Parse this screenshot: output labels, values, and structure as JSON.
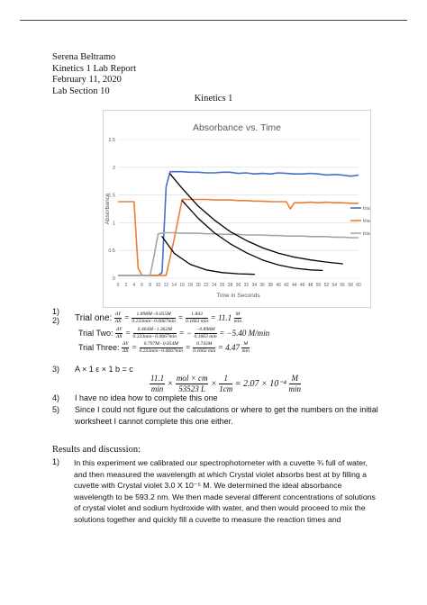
{
  "header": {
    "name": "Serena Beltramo",
    "report": "Kinetics 1 Lab Report",
    "date": "February 11, 2020",
    "section": "Lab Section 10"
  },
  "doc_title": "Kinetics 1",
  "chart_data": {
    "type": "line",
    "title": "Absorbance vs. Time",
    "xlabel": "Time in Seconds",
    "ylabel": "Absorbance",
    "xlim": [
      0,
      60
    ],
    "ylim": [
      0,
      2.5
    ],
    "x_ticks": [
      "0",
      "2",
      "4",
      "6",
      "8",
      "10",
      "12",
      "14",
      "16",
      "18",
      "20",
      "22",
      "24",
      "26",
      "28",
      "30",
      "32",
      "34",
      "36",
      "38",
      "40",
      "42",
      "44",
      "46",
      "48",
      "50",
      "52",
      "54",
      "56",
      "58",
      "60"
    ],
    "y_ticks": [
      "0",
      "0.5",
      "1",
      "1.5",
      "2",
      "2.5"
    ],
    "grid": true,
    "legend_position": "right",
    "series": [
      {
        "name": "trial one",
        "color": "#4472c4",
        "x": [
          0,
          2,
          4,
          6,
          8,
          10,
          11,
          12,
          13,
          14,
          16,
          18,
          20,
          22,
          24,
          26,
          28,
          30,
          32,
          34,
          36,
          38,
          40,
          42,
          44,
          46,
          48,
          50,
          52,
          54,
          56,
          58,
          60
        ],
        "y": [
          0.05,
          0.05,
          0.05,
          0.05,
          0.05,
          0.05,
          0.1,
          1.65,
          1.92,
          1.92,
          1.92,
          1.91,
          1.91,
          1.9,
          1.9,
          1.91,
          1.91,
          1.89,
          1.9,
          1.88,
          1.89,
          1.88,
          1.9,
          1.89,
          1.88,
          1.88,
          1.89,
          1.88,
          1.86,
          1.87,
          1.86,
          1.84,
          1.86
        ]
      },
      {
        "name": "trial 2",
        "color": "#ed7d31",
        "x": [
          0,
          2,
          4,
          5,
          6,
          7,
          8,
          10,
          12,
          14,
          16,
          18,
          20,
          22,
          24,
          26,
          28,
          30,
          32,
          34,
          36,
          38,
          40,
          42,
          43,
          44,
          46,
          48,
          50,
          52,
          54,
          56,
          58,
          60
        ],
        "y": [
          1.38,
          1.38,
          1.38,
          0.18,
          0.05,
          0.05,
          0.05,
          0.05,
          0.05,
          0.7,
          1.42,
          1.42,
          1.42,
          1.42,
          1.41,
          1.41,
          1.41,
          1.4,
          1.4,
          1.39,
          1.39,
          1.38,
          1.38,
          1.38,
          1.25,
          1.36,
          1.36,
          1.37,
          1.36,
          1.37,
          1.36,
          1.36,
          1.35,
          1.35
        ]
      },
      {
        "name": "trial 3",
        "color": "#a5a5a5",
        "x": [
          0,
          2,
          4,
          6,
          7,
          8,
          9,
          10,
          12,
          14,
          16,
          18,
          20,
          22,
          24,
          26,
          28,
          30,
          32,
          34,
          36,
          38,
          40,
          42,
          44,
          46,
          48,
          50,
          52,
          54,
          56,
          58,
          60
        ],
        "y": [
          0.05,
          0.05,
          0.05,
          0.05,
          0.05,
          0.05,
          0.4,
          0.8,
          0.82,
          0.82,
          0.81,
          0.81,
          0.81,
          0.8,
          0.8,
          0.79,
          0.79,
          0.79,
          0.78,
          0.78,
          0.78,
          0.77,
          0.77,
          0.76,
          0.76,
          0.76,
          0.75,
          0.75,
          0.75,
          0.74,
          0.74,
          0.73,
          0.73
        ]
      }
    ],
    "drawn_curves": [
      {
        "color": "#000000",
        "x": [
          13,
          16,
          20,
          24,
          28,
          32,
          36,
          40,
          44,
          48,
          52,
          56
        ],
        "y": [
          1.88,
          1.62,
          1.3,
          1.05,
          0.84,
          0.68,
          0.55,
          0.45,
          0.38,
          0.33,
          0.29,
          0.26
        ]
      },
      {
        "color": "#000000",
        "x": [
          16,
          20,
          24,
          28,
          32,
          36,
          40,
          44,
          48,
          51
        ],
        "y": [
          1.4,
          1.08,
          0.82,
          0.62,
          0.46,
          0.33,
          0.24,
          0.18,
          0.15,
          0.14
        ]
      },
      {
        "color": "#000000",
        "x": [
          11,
          14,
          18,
          22,
          26,
          30,
          34
        ],
        "y": [
          0.75,
          0.45,
          0.25,
          0.15,
          0.1,
          0.08,
          0.07
        ]
      }
    ]
  },
  "questions": {
    "q1": {
      "num": "1)"
    },
    "q2": {
      "num": "2)",
      "trial_one_label": "Trial one:",
      "trial_one_frac1_n": "ΔY",
      "trial_one_frac1_d": "ΔX",
      "trial_one_frac2_n": "1.898M−0.055M",
      "trial_one_frac2_d": "0.233min−0.0667min",
      "trial_one_frac3_n": "1.843",
      "trial_one_frac3_d": "0.1663 min",
      "trial_one_result": "= 11.1",
      "trial_one_unit_n": "M",
      "trial_one_unit_d": "min",
      "trial_two_label": "Trial Two:",
      "trial_two_frac1_n": "ΔY",
      "trial_two_frac1_d": "ΔX",
      "trial_two_frac2_n": "0.464M−1.362M",
      "trial_two_frac2_d": "0.233min−0.0667min",
      "trial_two_frac3_n": "−0.898M",
      "trial_two_frac3_d": "0.1663 min",
      "trial_two_result": "= −5.40 M/min",
      "trial_three_label": "Trial Three:",
      "trial_three_frac1_n": "ΔY",
      "trial_three_frac1_d": "ΔX",
      "trial_three_frac2_n": "0.797M−0.054M",
      "trial_three_frac2_d": "0.233min−0.0667min",
      "trial_three_frac3_n": "0.743M",
      "trial_three_frac3_d": "0.1663 min",
      "trial_three_result": "= 4.47",
      "trial_three_unit_n": "M",
      "trial_three_unit_d": "min"
    },
    "q3": {
      "num": "3)",
      "text": "A × 1 ε × 1 b = c",
      "f1_n": "11.1",
      "f1_d": "min",
      "f2_n": "mol × cm",
      "f2_d": "53523 L",
      "f3_n": "1",
      "f3_d": "1cm",
      "result": "= 2.07 × 10⁻⁴",
      "unit_n": "M",
      "unit_d": "min"
    },
    "q4": {
      "num": "4)",
      "text": "I have no idea how to complete this one"
    },
    "q5": {
      "num": "5)",
      "line1": "Since I could not figure out the calculations or where to get the numbers on the initial",
      "line2": "worksheet I cannot complete this one either."
    }
  },
  "results": {
    "heading": "Results and discussion:",
    "num": "1)",
    "lines": [
      "In this experiment we calibrated our spectrophotometer with a cuvette ¾ full of water,",
      "and then measured the wavelength at which Crystal violet absorbs best at by filling a",
      "cuvette with Crystal violet 3.0 X 10⁻⁵ M. We determined the ideal absorbance",
      "wavelength to be 593.2 nm. We then made several different concentrations of solutions",
      "of crystal violet and sodium hydroxide with water, and then would proceed to mix the",
      "solutions together and quickly fill a cuvette to measure the reaction times and"
    ]
  }
}
